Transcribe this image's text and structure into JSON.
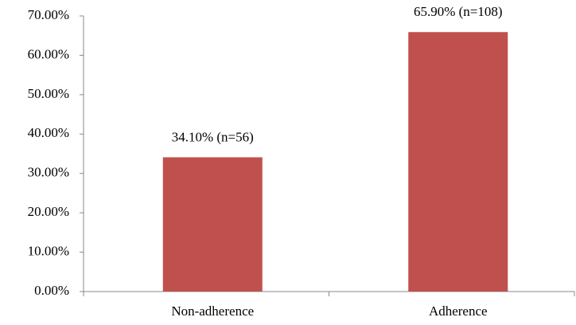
{
  "chart_data": {
    "type": "bar",
    "categories": [
      "Non-adherence",
      "Adherence"
    ],
    "values": [
      34.1,
      65.9
    ],
    "value_labels": [
      "34.10% (n=56)",
      "65.90% (n=108)"
    ],
    "color": "#c0504d",
    "ylim": [
      0,
      70
    ],
    "yticks": [
      {
        "value": 0,
        "label": "0.00%"
      },
      {
        "value": 10,
        "label": "10.00%"
      },
      {
        "value": 20,
        "label": "20.00%"
      },
      {
        "value": 30,
        "label": "30.00%"
      },
      {
        "value": 40,
        "label": "40.00%"
      },
      {
        "value": 50,
        "label": "50.00%"
      },
      {
        "value": 60,
        "label": "60.00%"
      },
      {
        "value": 70,
        "label": "70.00%"
      }
    ],
    "grid": false
  }
}
